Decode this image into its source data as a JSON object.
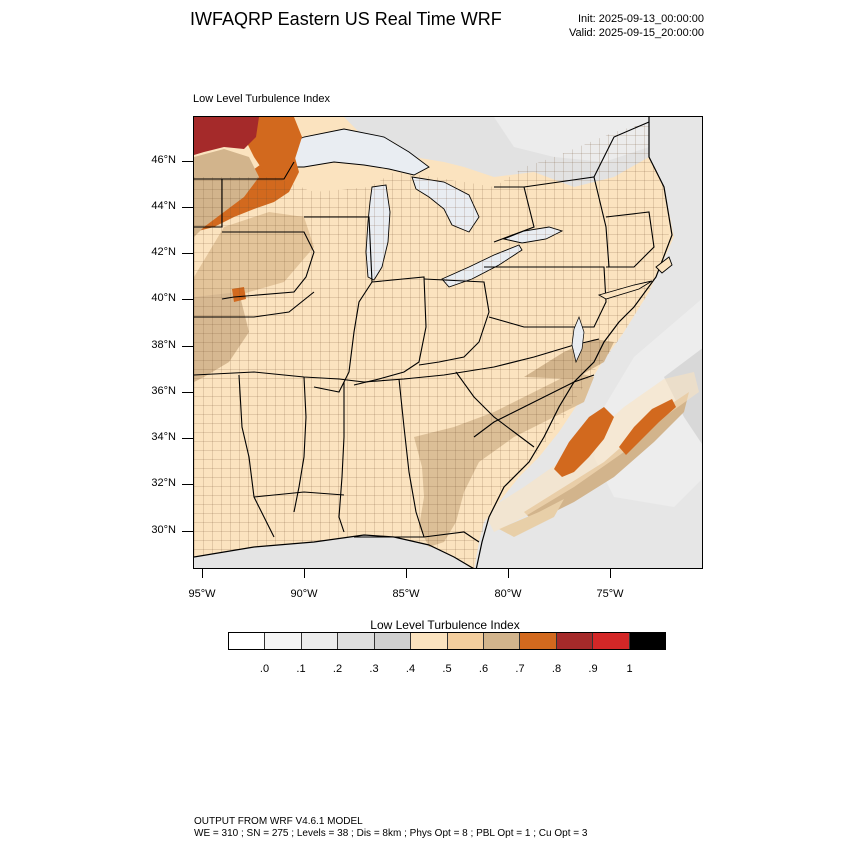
{
  "title": "IWFAQRP Eastern US Real Time WRF",
  "init": "Init: 2025-09-13_00:00:00",
  "valid": "Valid: 2025-09-15_20:00:00",
  "map": {
    "subtitle": "Low Level Turbulence Index",
    "lat_labels": [
      "46°N",
      "44°N",
      "42°N",
      "40°N",
      "38°N",
      "36°N",
      "34°N",
      "32°N",
      "30°N"
    ],
    "lon_labels": [
      "95°W",
      "90°W",
      "85°W",
      "80°W",
      "75°W"
    ],
    "colors": {
      "land_base": "#fbe3bf",
      "water": "#e8ecf1",
      "ocean_gray": "#dcdcdc",
      "tan": "#d2b48c",
      "orange": "#d2691e",
      "dark_red": "#a52a2a",
      "boundaries": "#000000"
    }
  },
  "colorbar": {
    "title": "Low Level Turbulence Index",
    "colors": [
      "#ffffff",
      "#f5f5f5",
      "#ececec",
      "#dedede",
      "#d0d0d0",
      "#fbe3bf",
      "#f3ce9e",
      "#d2b48c",
      "#d2691e",
      "#a52a2a",
      "#d32727",
      "#000000"
    ],
    "labels": [
      ".0",
      ".1",
      ".2",
      ".3",
      ".4",
      ".5",
      ".6",
      ".7",
      ".8",
      ".9",
      "1"
    ]
  },
  "footer": {
    "line1": "OUTPUT FROM WRF V4.6.1 MODEL",
    "line2": "WE = 310 ; SN = 275 ; Levels = 38 ; Dis = 8km ; Phys Opt = 8 ; PBL Opt = 1 ; Cu Opt = 3"
  }
}
